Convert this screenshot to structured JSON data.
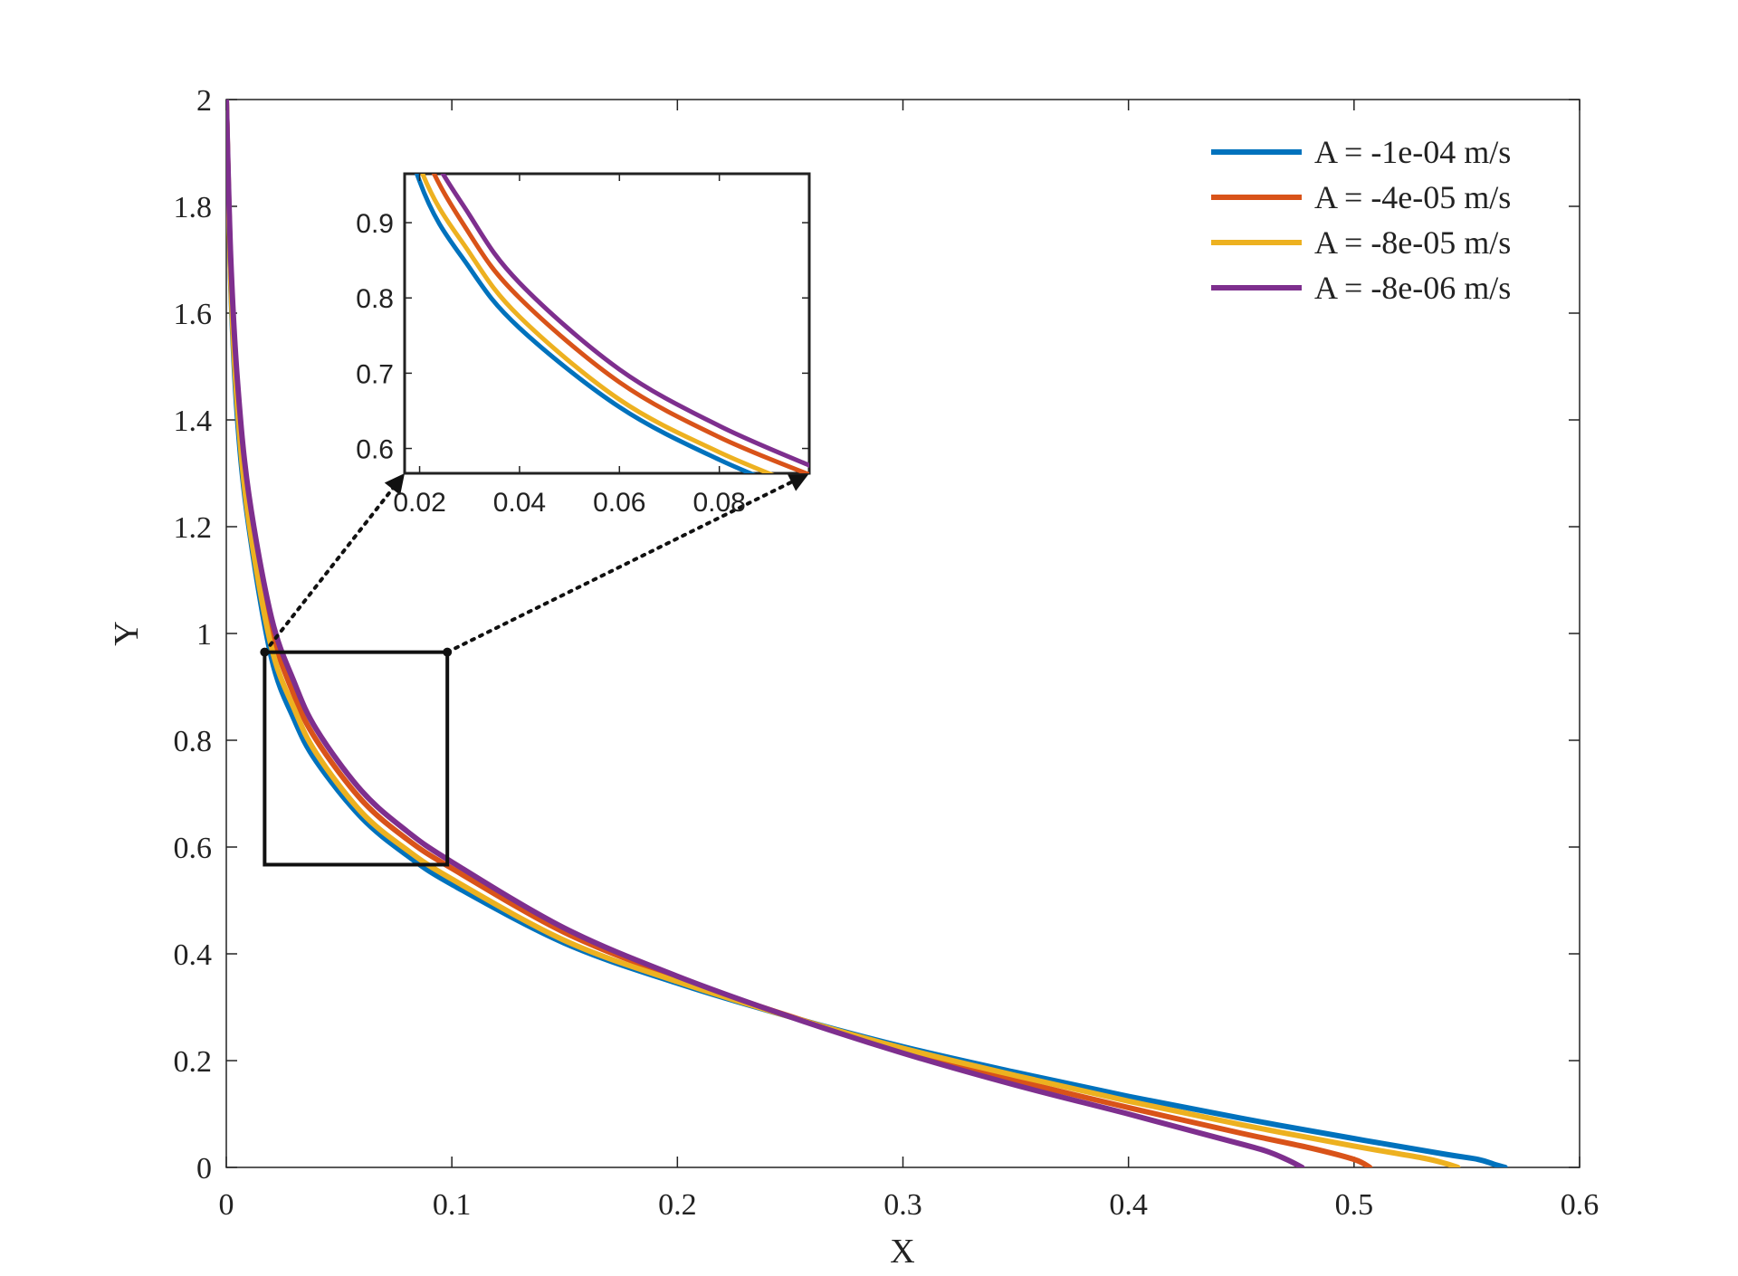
{
  "chart_data": {
    "type": "line",
    "title": "",
    "xlabel": "X",
    "ylabel": "Y",
    "xlim": [
      0,
      0.6
    ],
    "ylim": [
      0,
      2
    ],
    "xticks": [
      0,
      0.1,
      0.2,
      0.3,
      0.4,
      0.5,
      0.6
    ],
    "yticks": [
      0,
      0.2,
      0.4,
      0.6,
      0.8,
      1,
      1.2,
      1.4,
      1.6,
      1.8,
      2
    ],
    "legend_position": "top-right",
    "series": [
      {
        "name": "A = -1e-04 m/s",
        "color": "#0072BD",
        "x": [
          0.0,
          0.002,
          0.005,
          0.01,
          0.02,
          0.03,
          0.04,
          0.06,
          0.08,
          0.1,
          0.15,
          0.2,
          0.25,
          0.3,
          0.35,
          0.4,
          0.45,
          0.5,
          0.54,
          0.555,
          0.562,
          0.567
        ],
        "y": [
          2.0,
          1.65,
          1.4,
          1.2,
          0.955,
          0.84,
          0.76,
          0.655,
          0.585,
          0.53,
          0.42,
          0.345,
          0.282,
          0.226,
          0.178,
          0.133,
          0.092,
          0.054,
          0.025,
          0.015,
          0.006,
          0.0
        ]
      },
      {
        "name": "A = -4e-05 m/s",
        "color": "#D95319",
        "x": [
          0.0,
          0.002,
          0.005,
          0.01,
          0.02,
          0.03,
          0.04,
          0.06,
          0.08,
          0.1,
          0.15,
          0.2,
          0.25,
          0.3,
          0.35,
          0.4,
          0.45,
          0.48,
          0.5,
          0.507
        ],
        "y": [
          2.0,
          1.68,
          1.45,
          1.24,
          1.01,
          0.885,
          0.8,
          0.688,
          0.615,
          0.56,
          0.44,
          0.355,
          0.283,
          0.219,
          0.163,
          0.112,
          0.064,
          0.037,
          0.015,
          0.0
        ]
      },
      {
        "name": "A = -8e-05 m/s",
        "color": "#EDB120",
        "x": [
          0.0,
          0.002,
          0.005,
          0.01,
          0.02,
          0.03,
          0.04,
          0.06,
          0.08,
          0.1,
          0.15,
          0.2,
          0.25,
          0.3,
          0.35,
          0.4,
          0.45,
          0.5,
          0.53,
          0.54,
          0.546
        ],
        "y": [
          2.0,
          1.66,
          1.42,
          1.21,
          0.975,
          0.86,
          0.775,
          0.665,
          0.595,
          0.54,
          0.425,
          0.348,
          0.282,
          0.223,
          0.172,
          0.124,
          0.08,
          0.04,
          0.018,
          0.008,
          0.0
        ]
      },
      {
        "name": "A = -8e-06 m/s",
        "color": "#7E2F8E",
        "x": [
          0.0,
          0.002,
          0.005,
          0.01,
          0.02,
          0.03,
          0.04,
          0.06,
          0.08,
          0.1,
          0.15,
          0.2,
          0.25,
          0.3,
          0.35,
          0.4,
          0.44,
          0.46,
          0.47,
          0.477
        ],
        "y": [
          2.0,
          1.7,
          1.47,
          1.26,
          1.03,
          0.91,
          0.82,
          0.705,
          0.63,
          0.572,
          0.448,
          0.358,
          0.282,
          0.214,
          0.154,
          0.1,
          0.055,
          0.032,
          0.015,
          0.0
        ]
      }
    ],
    "zoom_box": {
      "xlim": [
        0.017,
        0.098
      ],
      "ylim": [
        0.567,
        0.965
      ]
    },
    "inset": {
      "xlim": [
        0.017,
        0.098
      ],
      "ylim": [
        0.567,
        0.965
      ],
      "xticks": [
        0.02,
        0.04,
        0.06,
        0.08
      ],
      "xtick_labels": [
        "0.02",
        "0.04",
        "0.06",
        "0.08"
      ],
      "yticks": [
        0.6,
        0.7,
        0.8,
        0.9
      ],
      "ytick_labels": [
        "0.6",
        "0.7",
        "0.8",
        "0.9"
      ]
    }
  }
}
